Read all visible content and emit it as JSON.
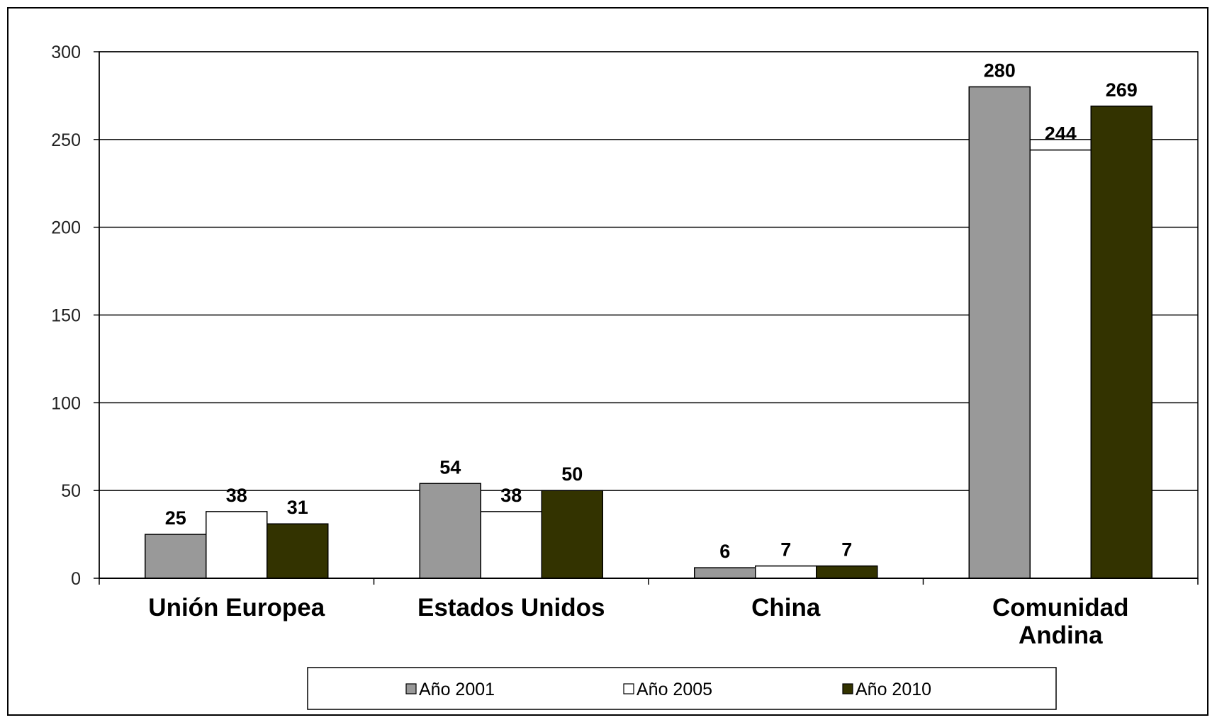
{
  "chart_data": {
    "type": "bar",
    "title": "",
    "xlabel": "",
    "ylabel": "",
    "categories": [
      [
        "Unión Europea"
      ],
      [
        "Estados Unidos"
      ],
      [
        "China"
      ],
      [
        "Comunidad",
        "Andina"
      ]
    ],
    "series": [
      {
        "name": "Año 2001",
        "color": "#999999",
        "values": [
          25,
          54,
          6,
          280
        ]
      },
      {
        "name": "Año 2005",
        "color": "#ffffff",
        "values": [
          38,
          38,
          7,
          244
        ]
      },
      {
        "name": "Año 2010",
        "color": "#333300",
        "values": [
          31,
          50,
          7,
          269
        ]
      }
    ],
    "ylim": [
      0,
      300
    ],
    "yticks": [
      0,
      50,
      100,
      150,
      200,
      250,
      300
    ],
    "grid": true,
    "legend_position": "bottom",
    "data_labels": true
  }
}
